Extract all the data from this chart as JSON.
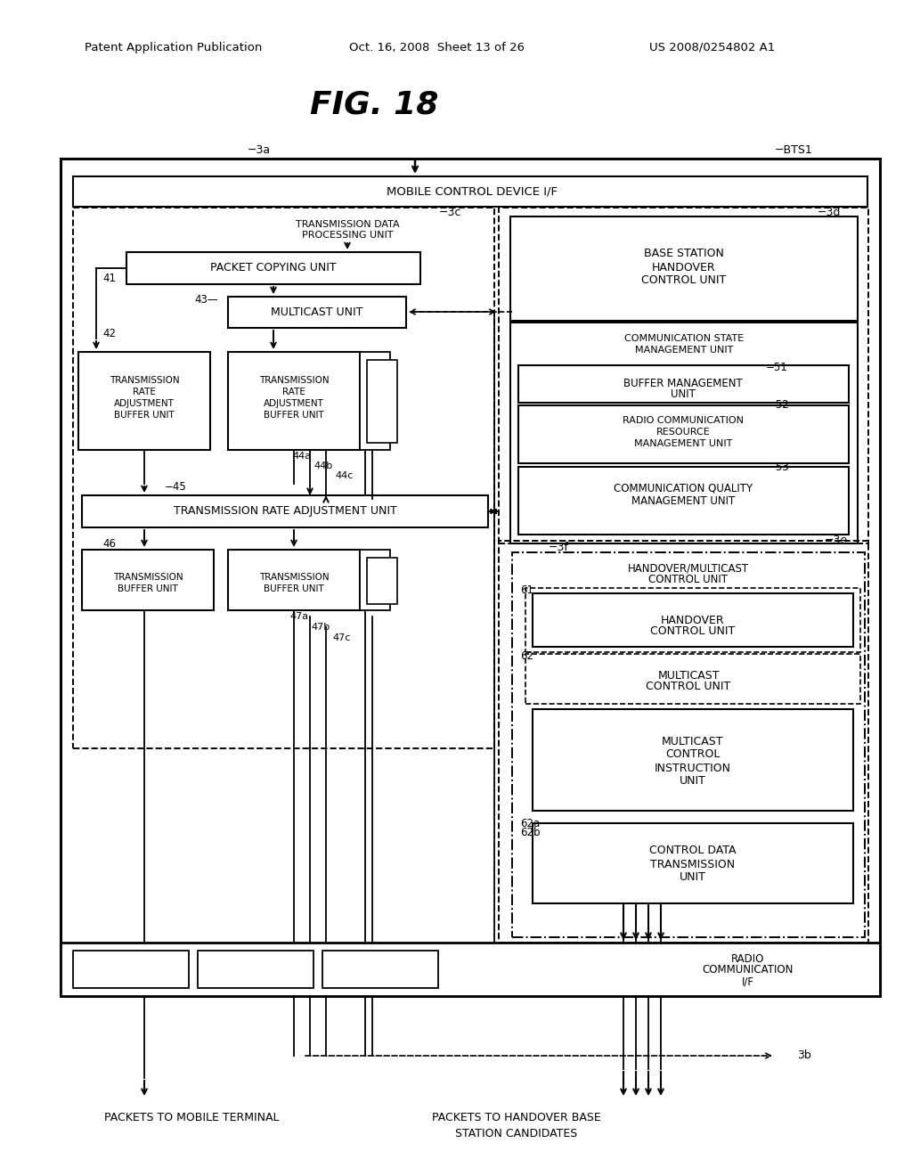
{
  "bg": "#ffffff",
  "fig_w": 10.24,
  "fig_h": 13.2,
  "header_left": "Patent Application Publication",
  "header_mid": "Oct. 16, 2008  Sheet 13 of 26",
  "header_right": "US 2008/0254802 A1",
  "title": "FIG. 18"
}
